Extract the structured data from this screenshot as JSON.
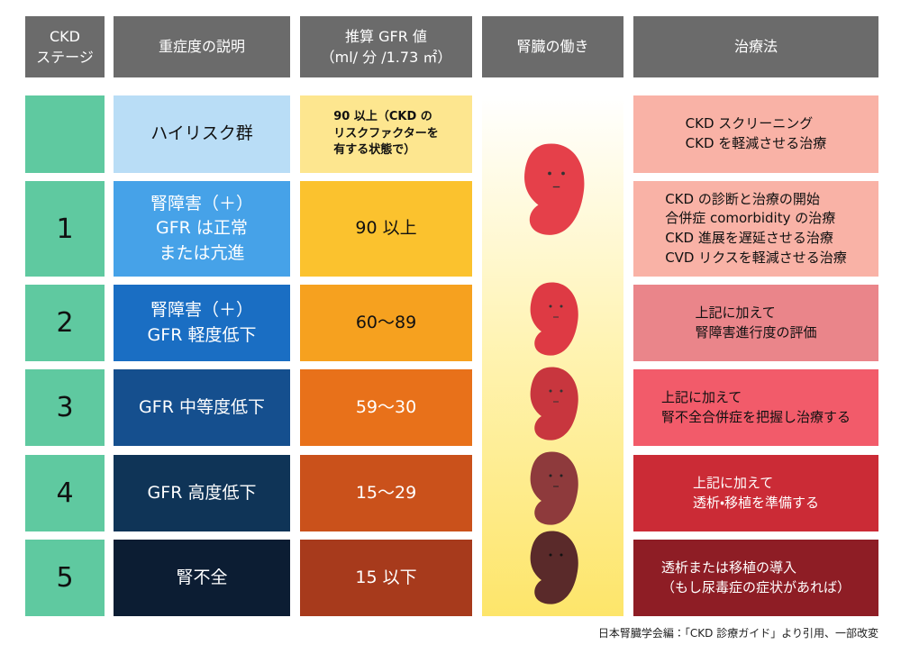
{
  "headers": [
    [
      "CKD",
      "ステージ"
    ],
    [
      "重症度の説明"
    ],
    [
      "推算 GFR 値",
      "（ml/ 分 /1.73 ㎡）"
    ],
    [
      "腎臓の働き"
    ],
    [
      "治療法"
    ]
  ],
  "rows": [
    {
      "description": [
        "ハイリスク群"
      ],
      "gfr": [
        "90 以上（CKD の",
        "リスクファクターを",
        "有する状態で）"
      ],
      "treatment": [
        "CKD スクリーニング",
        "CKD を軽減させる治療"
      ]
    },
    {
      "stage": "1",
      "description": [
        "腎障害（＋）",
        "GFR は正常",
        "または亢進"
      ],
      "gfr": [
        "90 以上"
      ],
      "treatment": [
        "CKD の診断と治療の開始",
        "合併症 comorbidity の治療",
        "CKD 進展を遅延させる治療",
        "CVD リクスを軽減させる治療"
      ]
    },
    {
      "stage": "2",
      "description": [
        "腎障害（＋）",
        "GFR 軽度低下"
      ],
      "gfr": [
        "60〜89"
      ],
      "treatment": [
        "上記に加えて",
        "腎障害進行度の評価"
      ]
    },
    {
      "stage": "3",
      "description": [
        "GFR 中等度低下"
      ],
      "gfr": [
        "59〜30"
      ],
      "treatment": [
        "上記に加えて",
        "腎不全合併症を把握し治療する"
      ]
    },
    {
      "stage": "4",
      "description": [
        "GFR 高度低下"
      ],
      "gfr": [
        "15〜29"
      ],
      "treatment": [
        "上記に加えて",
        "透析・移植を準備する"
      ]
    },
    {
      "stage": "5",
      "description": [
        "腎不全"
      ],
      "gfr": [
        "15 以下"
      ],
      "treatment": [
        "透析または移植の導入",
        "（もし尿毒症の症状があれば）"
      ]
    }
  ],
  "source": "日本腎臓学会編：「CKD 診療ガイド」より引用、一部改変"
}
